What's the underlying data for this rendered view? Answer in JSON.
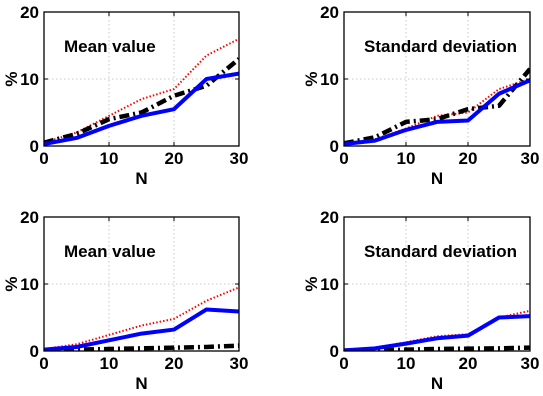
{
  "chart_data": [
    {
      "type": "line",
      "annotation": "Mean value",
      "xlabel": "N",
      "ylabel": "%",
      "xlim": [
        0,
        30
      ],
      "ylim": [
        0,
        20
      ],
      "xticks": [
        0,
        10,
        20,
        30
      ],
      "yticks": [
        0,
        10,
        20
      ],
      "grid": true,
      "x": [
        0,
        5,
        10,
        15,
        20,
        25,
        30
      ],
      "series": [
        {
          "color": "#ff0000",
          "style": "dotted",
          "values": [
            0.5,
            2.0,
            4.5,
            7.0,
            8.5,
            13.5,
            16.0
          ]
        },
        {
          "color": "#000000",
          "style": "dashdot",
          "values": [
            0.5,
            1.8,
            4.0,
            5.0,
            7.5,
            9.0,
            13.0
          ]
        },
        {
          "color": "#0000ff",
          "style": "solid",
          "values": [
            0.3,
            1.2,
            3.0,
            4.5,
            5.5,
            10.0,
            10.8
          ]
        }
      ]
    },
    {
      "type": "line",
      "annotation": "Standard deviation",
      "xlabel": "N",
      "ylabel": "%",
      "xlim": [
        0,
        30
      ],
      "ylim": [
        0,
        20
      ],
      "xticks": [
        0,
        10,
        20,
        30
      ],
      "yticks": [
        0,
        10,
        20
      ],
      "grid": true,
      "x": [
        0,
        5,
        10,
        15,
        20,
        25,
        30
      ],
      "series": [
        {
          "color": "#ff0000",
          "style": "dotted",
          "values": [
            0.4,
            1.0,
            2.6,
            4.5,
            5.0,
            8.5,
            10.0
          ]
        },
        {
          "color": "#000000",
          "style": "dashdot",
          "values": [
            0.4,
            1.3,
            3.6,
            4.0,
            5.5,
            6.0,
            11.5
          ]
        },
        {
          "color": "#0000ff",
          "style": "solid",
          "values": [
            0.3,
            0.8,
            2.4,
            3.6,
            3.8,
            7.8,
            9.8
          ]
        }
      ]
    },
    {
      "type": "line",
      "annotation": "Mean value",
      "xlabel": "N",
      "ylabel": "%",
      "xlim": [
        0,
        30
      ],
      "ylim": [
        0,
        20
      ],
      "xticks": [
        0,
        10,
        20,
        30
      ],
      "yticks": [
        0,
        10,
        20
      ],
      "grid": true,
      "x": [
        0,
        5,
        10,
        15,
        20,
        25,
        30
      ],
      "series": [
        {
          "color": "#ff0000",
          "style": "dotted",
          "values": [
            0.3,
            1.0,
            2.4,
            3.8,
            4.8,
            7.5,
            9.5
          ]
        },
        {
          "color": "#000000",
          "style": "dashdot",
          "values": [
            0.1,
            0.2,
            0.3,
            0.4,
            0.5,
            0.6,
            0.8
          ]
        },
        {
          "color": "#0000ff",
          "style": "solid",
          "values": [
            0.2,
            0.6,
            1.6,
            2.6,
            3.2,
            6.2,
            5.9
          ]
        }
      ]
    },
    {
      "type": "line",
      "annotation": "Standard deviation",
      "xlabel": "N",
      "ylabel": "%",
      "xlim": [
        0,
        30
      ],
      "ylim": [
        0,
        20
      ],
      "xticks": [
        0,
        10,
        20,
        30
      ],
      "yticks": [
        0,
        10,
        20
      ],
      "grid": true,
      "x": [
        0,
        5,
        10,
        15,
        20,
        25,
        30
      ],
      "series": [
        {
          "color": "#ff0000",
          "style": "dotted",
          "values": [
            0.1,
            0.5,
            1.3,
            2.2,
            2.5,
            5.0,
            6.0
          ]
        },
        {
          "color": "#000000",
          "style": "dashdot",
          "values": [
            0.05,
            0.1,
            0.2,
            0.3,
            0.35,
            0.4,
            0.5
          ]
        },
        {
          "color": "#0000ff",
          "style": "solid",
          "values": [
            0.1,
            0.4,
            1.1,
            1.9,
            2.3,
            5.0,
            5.2
          ]
        }
      ]
    }
  ]
}
